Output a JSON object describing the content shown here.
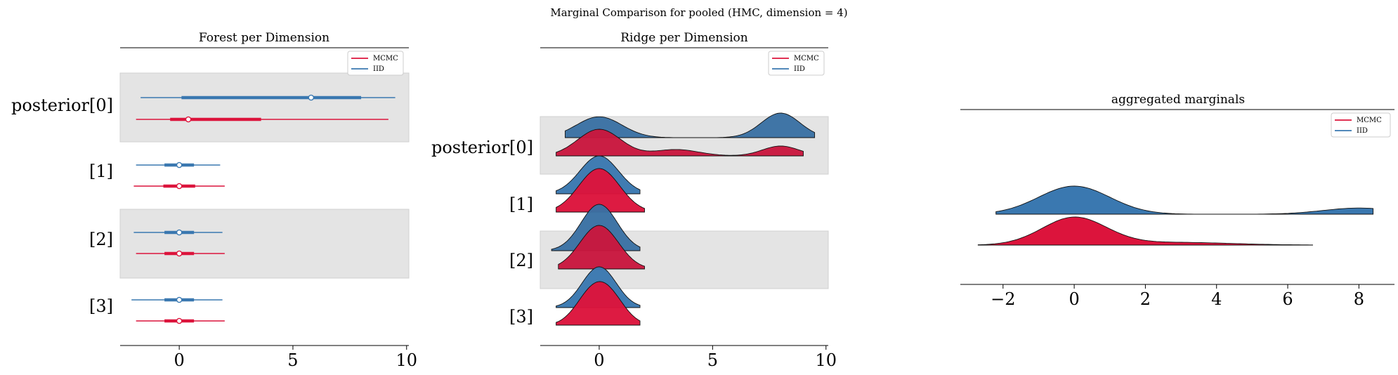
{
  "figure": {
    "suptitle": "Marginal Comparison for pooled (HMC, dimension = 4)"
  },
  "colors": {
    "MCMC": "#DC143C",
    "IID": "#3A78B0",
    "band": "#E4E4E4"
  },
  "chart_data": [
    {
      "type": "forest",
      "title": "Forest per Dimension",
      "xlim": [
        -2.6,
        10.1
      ],
      "xticks": [
        0,
        5,
        10
      ],
      "xtick_labels": [
        "0",
        "5",
        "10"
      ],
      "row_labels": [
        "posterior[0]",
        "[1]",
        "[2]",
        "[3]"
      ],
      "shaded_rows": [
        0,
        2
      ],
      "legend": {
        "entries": [
          "MCMC",
          "IID"
        ],
        "placement": "top-right"
      },
      "series": [
        {
          "name": "IID",
          "rows": [
            {
              "lo": -1.7,
              "q1": 0.1,
              "mean": 5.8,
              "q3": 8.0,
              "hi": 9.5
            },
            {
              "lo": -1.9,
              "q1": -0.65,
              "mean": 0.0,
              "q3": 0.65,
              "hi": 1.8
            },
            {
              "lo": -2.0,
              "q1": -0.65,
              "mean": 0.0,
              "q3": 0.65,
              "hi": 1.9
            },
            {
              "lo": -2.1,
              "q1": -0.65,
              "mean": 0.0,
              "q3": 0.65,
              "hi": 1.9
            }
          ]
        },
        {
          "name": "MCMC",
          "rows": [
            {
              "lo": -1.9,
              "q1": -0.4,
              "mean": 0.4,
              "q3": 3.6,
              "hi": 9.2
            },
            {
              "lo": -2.0,
              "q1": -0.7,
              "mean": 0.0,
              "q3": 0.7,
              "hi": 2.0
            },
            {
              "lo": -1.9,
              "q1": -0.65,
              "mean": 0.0,
              "q3": 0.65,
              "hi": 2.0
            },
            {
              "lo": -1.9,
              "q1": -0.65,
              "mean": 0.0,
              "q3": 0.65,
              "hi": 2.0
            }
          ]
        }
      ]
    },
    {
      "type": "ridge",
      "title": "Ridge per Dimension",
      "xlim": [
        -2.6,
        10.1
      ],
      "xticks": [
        0,
        5,
        10
      ],
      "xtick_labels": [
        "0",
        "5",
        "10"
      ],
      "row_labels": [
        "posterior[0]",
        "[1]",
        "[2]",
        "[3]"
      ],
      "shaded_rows": [
        0,
        2
      ],
      "legend": {
        "entries": [
          "MCMC",
          "IID"
        ],
        "placement": "top-right"
      },
      "series": [
        {
          "name": "IID",
          "rows": [
            {
              "range": [
                -1.5,
                9.5
              ],
              "components": [
                [
                  0.5,
                  0.0,
                  1.0
                ],
                [
                  0.5,
                  8.0,
                  0.85
                ]
              ]
            },
            {
              "range": [
                -1.9,
                1.8
              ],
              "components": [
                [
                  1.0,
                  0.0,
                  0.85
                ]
              ]
            },
            {
              "range": [
                -2.1,
                1.8
              ],
              "components": [
                [
                  1.0,
                  0.0,
                  0.8
                ]
              ]
            },
            {
              "range": [
                -1.9,
                1.8
              ],
              "components": [
                [
                  1.0,
                  0.0,
                  0.75
                ]
              ]
            }
          ]
        },
        {
          "name": "MCMC",
          "rows": [
            {
              "range": [
                -1.9,
                9.0
              ],
              "components": [
                [
                  0.64,
                  0.0,
                  0.95
                ],
                [
                  0.16,
                  3.4,
                  1.0
                ],
                [
                  0.2,
                  8.0,
                  0.8
                ]
              ]
            },
            {
              "range": [
                -1.9,
                2.0
              ],
              "components": [
                [
                  1.0,
                  0.0,
                  0.9
                ]
              ]
            },
            {
              "range": [
                -1.8,
                2.0
              ],
              "components": [
                [
                  1.0,
                  0.0,
                  0.85
                ]
              ]
            },
            {
              "range": [
                -1.9,
                1.8
              ],
              "components": [
                [
                  0.5,
                  -0.4,
                  0.7
                ],
                [
                  0.5,
                  0.45,
                  0.7
                ]
              ]
            }
          ]
        }
      ]
    },
    {
      "type": "area",
      "title": "aggregated marginals",
      "xlim": [
        -3.2,
        9.0
      ],
      "xticks": [
        -2,
        0,
        2,
        4,
        6,
        8
      ],
      "xtick_labels": [
        "−2",
        "0",
        "2",
        "4",
        "6",
        "8"
      ],
      "legend": {
        "entries": [
          "MCMC",
          "IID"
        ],
        "placement": "top-right"
      },
      "series": [
        {
          "name": "IID",
          "range": [
            -2.2,
            8.4
          ],
          "components": [
            [
              0.82,
              0.0,
              1.0
            ],
            [
              0.18,
              8.0,
              1.0
            ]
          ]
        },
        {
          "name": "MCMC",
          "range": [
            -2.7,
            6.7
          ],
          "components": [
            [
              0.85,
              0.0,
              0.9
            ],
            [
              0.15,
              2.8,
              1.6
            ]
          ]
        }
      ]
    }
  ]
}
